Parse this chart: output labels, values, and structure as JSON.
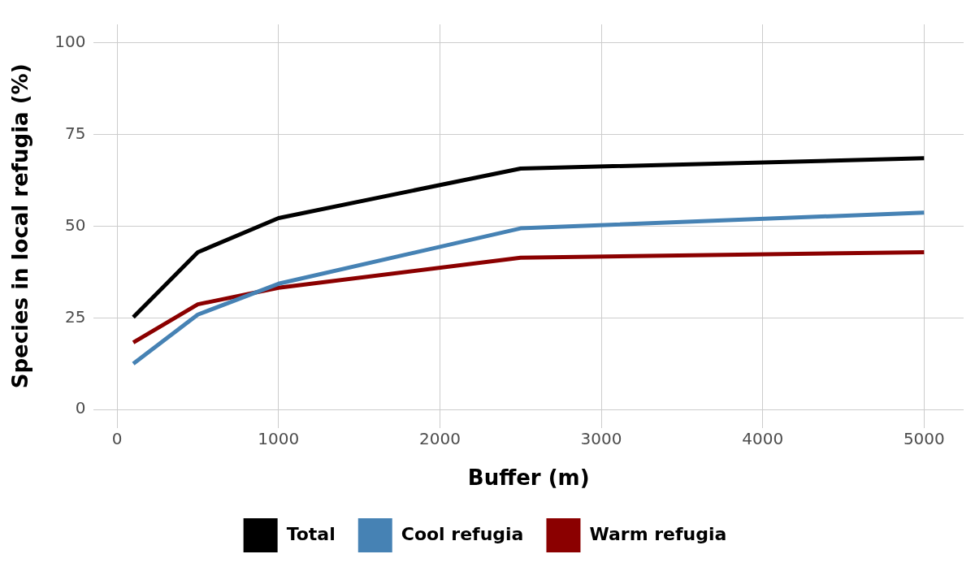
{
  "chart_data": {
    "type": "line",
    "xlabel": "Buffer (m)",
    "ylabel": "Species in local refugia (%)",
    "x": [
      100,
      500,
      1000,
      2500,
      5000
    ],
    "series": [
      {
        "name": "Total",
        "color": "#000000",
        "values": [
          25.2,
          42.9,
          52.2,
          65.7,
          68.5
        ]
      },
      {
        "name": "Cool refugia",
        "color": "#4682b4",
        "values": [
          12.5,
          25.9,
          34.3,
          49.4,
          53.7
        ]
      },
      {
        "name": "Warm refugia",
        "color": "#8b0000",
        "values": [
          18.3,
          28.7,
          33.2,
          41.4,
          42.9
        ]
      }
    ],
    "xlim": [
      -145,
      5245
    ],
    "xticks": [
      0,
      1000,
      2000,
      3000,
      4000,
      5000
    ],
    "ylim": [
      -5,
      105
    ],
    "yticks": [
      0,
      25,
      50,
      75,
      100
    ],
    "grid": true,
    "legend": "bottom",
    "marker": "none",
    "line_style": "solid"
  }
}
